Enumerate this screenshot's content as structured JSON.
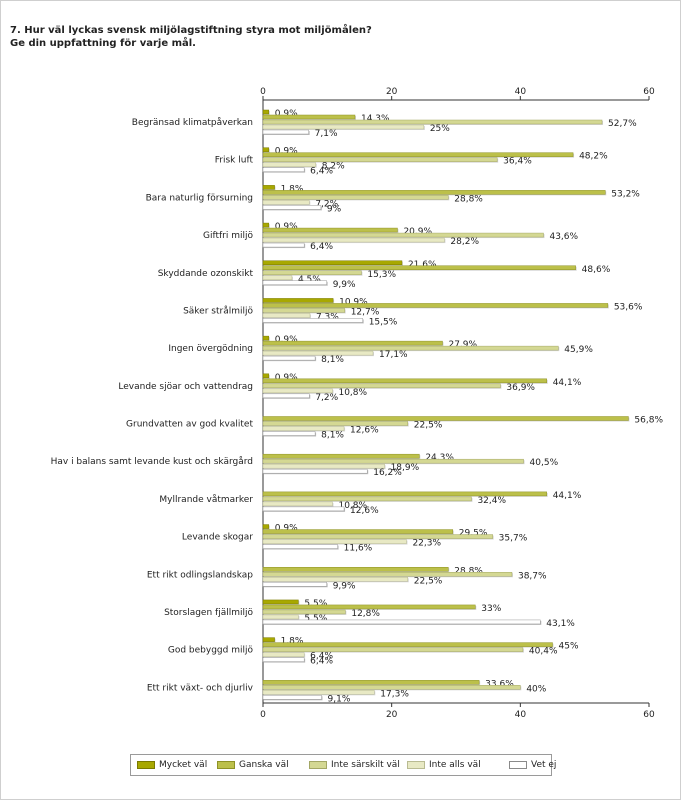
{
  "title": {
    "line1": "7. Hur väl lyckas svensk miljölagstiftning styra mot miljömålen?",
    "line2": "Ge din uppfattning för varje mål."
  },
  "chart_data": {
    "type": "bar",
    "orientation": "horizontal",
    "xlim": [
      0,
      60
    ],
    "xticks": [
      0,
      20,
      40,
      60
    ],
    "grid": false,
    "legend_position": "bottom",
    "categories": [
      "Begränsad klimatpåverkan",
      "Frisk luft",
      "Bara naturlig försurning",
      "Giftfri miljö",
      "Skyddande ozonskikt",
      "Säker strålmiljö",
      "Ingen övergödning",
      "Levande sjöar och vattendrag",
      "Grundvatten av god kvalitet",
      "Hav i balans samt levande kust och skärgård",
      "Myllrande våtmarker",
      "Levande skogar",
      "Ett rikt odlingslandskap",
      "Storslagen fjällmiljö",
      "God bebyggd miljö",
      "Ett rikt växt- och djurliv"
    ],
    "series": [
      {
        "name": "Mycket väl",
        "color": "#a8a800",
        "values": [
          0.9,
          0.9,
          1.8,
          0.9,
          21.6,
          10.9,
          0.9,
          0.9,
          null,
          null,
          null,
          0.9,
          null,
          5.5,
          1.8,
          null
        ],
        "labels": [
          "0,9%",
          "0,9%",
          "1,8%",
          "0,9%",
          "21,6%",
          "10,9%",
          "0,9%",
          "0,9%",
          "",
          "",
          "",
          "0,9%",
          "",
          "5,5%",
          "1,8%",
          ""
        ]
      },
      {
        "name": "Ganska väl",
        "color": "#bcc04a",
        "values": [
          14.3,
          48.2,
          53.2,
          20.9,
          48.6,
          53.6,
          27.9,
          44.1,
          56.8,
          24.3,
          44.1,
          29.5,
          28.8,
          33,
          45,
          33.6
        ],
        "labels": [
          "14,3%",
          "48,2%",
          "53,2%",
          "20,9%",
          "48,6%",
          "53,6%",
          "27,9%",
          "44,1%",
          "56,8%",
          "24,3%",
          "44,1%",
          "29,5%",
          "28,8%",
          "33%",
          "45%",
          "33,6%"
        ]
      },
      {
        "name": "Inte särskilt väl",
        "color": "#d4d893",
        "values": [
          52.7,
          36.4,
          28.8,
          43.6,
          15.3,
          12.7,
          45.9,
          36.9,
          22.5,
          40.5,
          32.4,
          35.7,
          38.7,
          12.8,
          40.4,
          40
        ],
        "labels": [
          "52,7%",
          "36,4%",
          "28,8%",
          "43,6%",
          "15,3%",
          "12,7%",
          "45,9%",
          "36,9%",
          "22,5%",
          "40,5%",
          "32,4%",
          "35,7%",
          "38,7%",
          "12,8%",
          "40,4%",
          "40%"
        ]
      },
      {
        "name": "Inte alls väl",
        "color": "#e8e9c4",
        "values": [
          25,
          8.2,
          7.2,
          28.2,
          4.5,
          7.3,
          17.1,
          10.8,
          12.6,
          18.9,
          10.8,
          22.3,
          22.5,
          5.5,
          6.4,
          17.3
        ],
        "labels": [
          "25%",
          "8,2%",
          "7,2%",
          "28,2%",
          "4,5%",
          "7,3%",
          "17,1%",
          "10,8%",
          "12,6%",
          "18,9%",
          "10,8%",
          "22,3%",
          "22,5%",
          "5,5%",
          "6,4%",
          "17,3%"
        ]
      },
      {
        "name": "Vet ej",
        "color": "#ffffff",
        "values": [
          7.1,
          6.4,
          9,
          6.4,
          9.9,
          15.5,
          8.1,
          7.2,
          8.1,
          16.2,
          12.6,
          11.6,
          9.9,
          43.1,
          6.4,
          9.1
        ],
        "labels": [
          "7,1%",
          "6,4%",
          "9%",
          "6,4%",
          "9,9%",
          "15,5%",
          "8,1%",
          "7,2%",
          "8,1%",
          "16,2%",
          "12,6%",
          "11,6%",
          "9,9%",
          "43,1%",
          "6,4%",
          "9,1%"
        ]
      }
    ]
  }
}
